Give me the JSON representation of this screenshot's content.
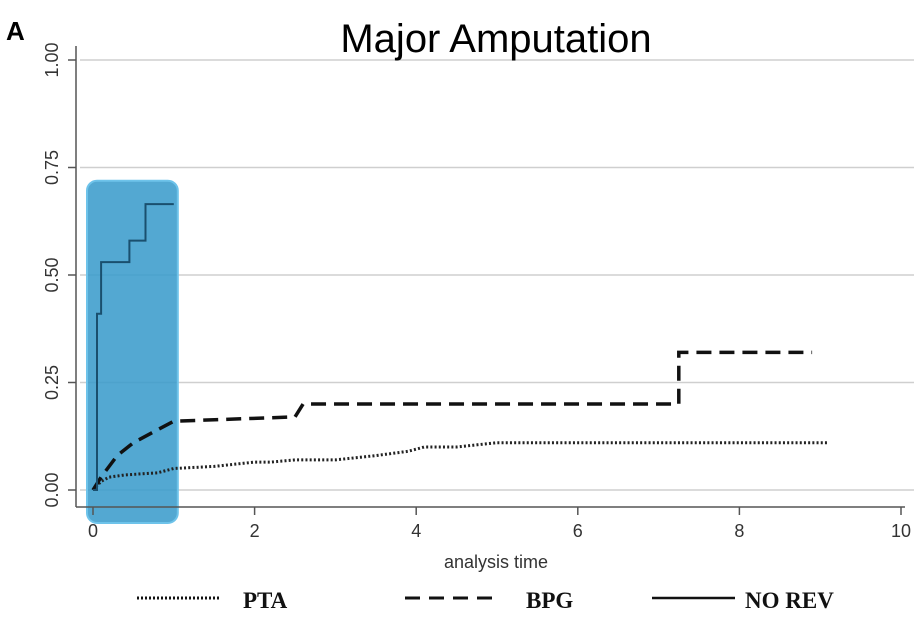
{
  "panel_letter": "A",
  "chart_data": {
    "type": "line",
    "title": "Major Amputation",
    "xlabel": "analysis time",
    "ylabel": "",
    "xlim": [
      0,
      10
    ],
    "ylim": [
      0,
      1
    ],
    "x_ticks": [
      "0",
      "2",
      "4",
      "6",
      "8",
      "10"
    ],
    "y_ticks": [
      "0.00",
      "0.25",
      "0.50",
      "0.75",
      "1.00"
    ],
    "grid": "horizontal",
    "legend_position": "bottom",
    "highlight": {
      "x_range": [
        0,
        1
      ],
      "y_range": [
        0,
        0.71
      ],
      "color": "#3b9ccc"
    },
    "series": [
      {
        "name": "PTA",
        "style": "dotted",
        "color": "#222222",
        "x": [
          0,
          0.1,
          0.2,
          0.4,
          0.8,
          1.0,
          1.5,
          2.0,
          2.2,
          2.5,
          3.0,
          3.5,
          3.9,
          4.1,
          4.5,
          5.0,
          5.2,
          7.0,
          9.1
        ],
        "y": [
          0.0,
          0.02,
          0.03,
          0.035,
          0.04,
          0.05,
          0.055,
          0.065,
          0.065,
          0.07,
          0.07,
          0.08,
          0.09,
          0.1,
          0.1,
          0.11,
          0.11,
          0.11,
          0.11
        ]
      },
      {
        "name": "BPG",
        "style": "dashed",
        "color": "#111111",
        "x": [
          0,
          0.1,
          0.3,
          0.5,
          0.8,
          1.0,
          2.5,
          2.6,
          7.25,
          7.25,
          8.9
        ],
        "y": [
          0.0,
          0.03,
          0.08,
          0.11,
          0.14,
          0.16,
          0.17,
          0.2,
          0.2,
          0.32,
          0.32
        ]
      },
      {
        "name": "NO REV",
        "style": "solid",
        "color": "#1a4f6e",
        "step": true,
        "x": [
          0,
          0.05,
          0.1,
          0.3,
          0.45,
          0.65,
          1.0
        ],
        "y": [
          0.0,
          0.41,
          0.53,
          0.53,
          0.58,
          0.665,
          0.665
        ]
      }
    ]
  }
}
